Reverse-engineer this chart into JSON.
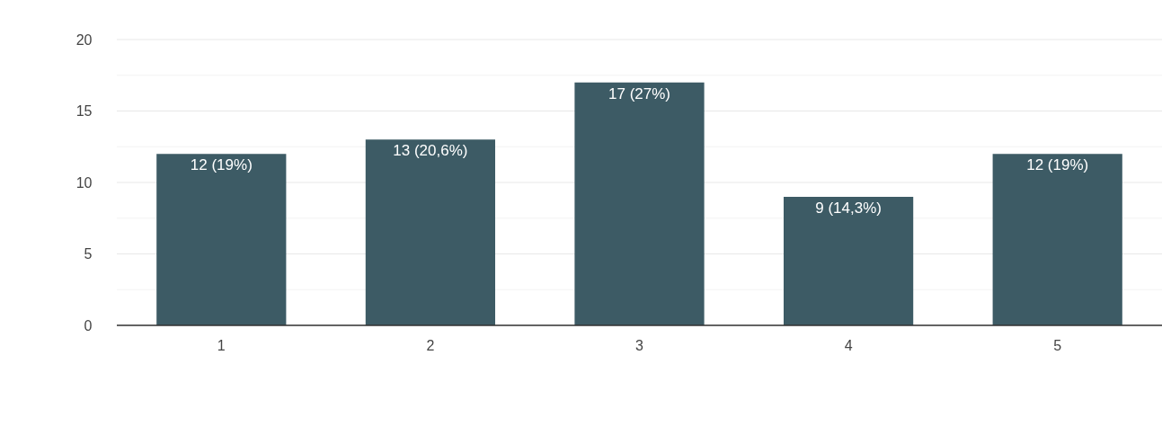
{
  "chart_data": {
    "type": "bar",
    "categories": [
      "1",
      "2",
      "3",
      "4",
      "5"
    ],
    "values": [
      12,
      13,
      17,
      9,
      12
    ],
    "value_labels": [
      "12 (19%)",
      "13 (20,6%)",
      "17 (27%)",
      "9 (14,3%)",
      "12 (19%)"
    ],
    "color": "#3d5b65",
    "ylim": [
      0,
      20
    ],
    "yticks": [
      0,
      {
        "value": 2.5,
        "label": null
      },
      5,
      {
        "value": 7.5,
        "label": null
      },
      10,
      {
        "value": 12.5,
        "label": null
      },
      15,
      {
        "value": 17.5,
        "label": null
      },
      20
    ],
    "grid": "y"
  }
}
